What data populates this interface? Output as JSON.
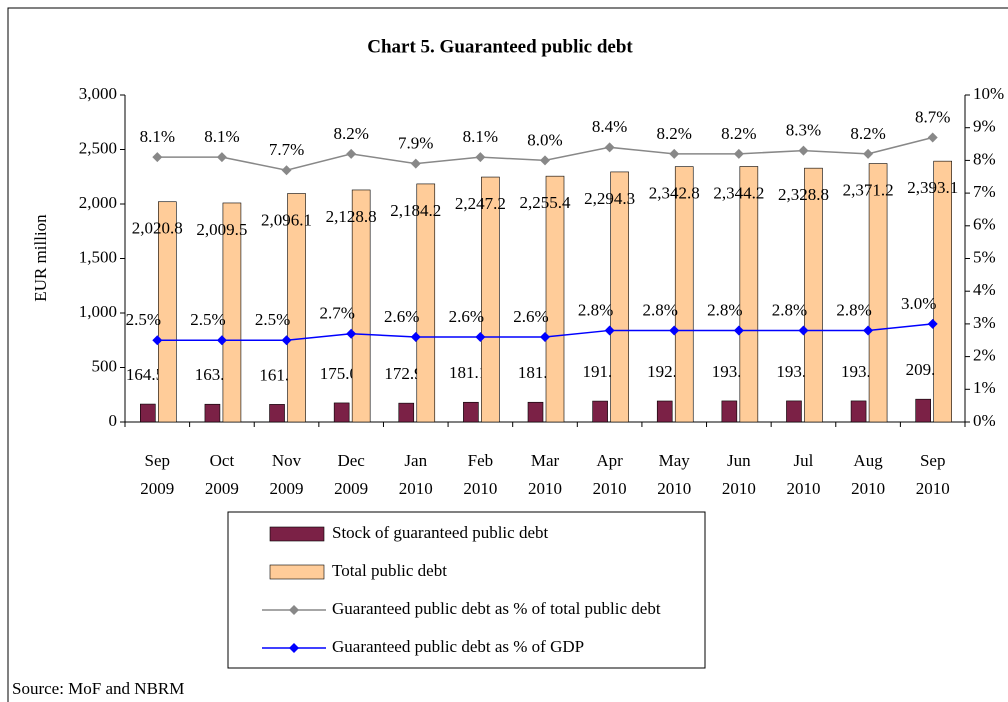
{
  "chart_data": {
    "type": "bar",
    "title": "Chart 5. Guaranteed public debt",
    "y_label": "EUR million",
    "source": "Source: MoF and NBRM",
    "categories": [
      "Sep 2009",
      "Oct 2009",
      "Nov 2009",
      "Dec 2009",
      "Jan 2010",
      "Feb 2010",
      "Mar 2010",
      "Apr 2010",
      "May 2010",
      "Jun 2010",
      "Jul 2010",
      "Aug 2010",
      "Sep 2010"
    ],
    "ylim": [
      0,
      3000
    ],
    "yticks": [
      0,
      500,
      {
        "value": 1000,
        "label": "1,000"
      },
      {
        "value": 1500,
        "label": "1,500"
      },
      {
        "value": 2000,
        "label": "2,000"
      },
      {
        "value": 2500,
        "label": "2,500"
      },
      {
        "value": 3000,
        "label": "3,000"
      }
    ],
    "y2lim": [
      0,
      10
    ],
    "y2ticks": [
      {
        "value": 0,
        "label": "0%"
      },
      {
        "value": 1,
        "label": "1%"
      },
      {
        "value": 2,
        "label": "2%"
      },
      {
        "value": 3,
        "label": "3%"
      },
      {
        "value": 4,
        "label": "4%"
      },
      {
        "value": 5,
        "label": "5%"
      },
      {
        "value": 6,
        "label": "6%"
      },
      {
        "value": 7,
        "label": "7%"
      },
      {
        "value": 8,
        "label": "8%"
      },
      {
        "value": 9,
        "label": "9%"
      },
      {
        "value": 10,
        "label": "10%"
      }
    ],
    "grid": false,
    "series": [
      {
        "name": "Stock of guaranteed public debt",
        "type": "bar",
        "color": "#7b2146",
        "values": [
          164.51,
          163.1,
          161.7,
          175.02,
          172.98,
          181.18,
          181.3,
          191.9,
          192.7,
          193.4,
          193.5,
          193.4,
          209.3
        ]
      },
      {
        "name": "Total public debt",
        "type": "bar",
        "color": "#ffcc99",
        "values": [
          2020.8,
          2009.5,
          2096.1,
          2128.8,
          2184.2,
          2247.2,
          2255.4,
          2294.3,
          2342.8,
          2344.2,
          2328.8,
          2371.2,
          2393.1
        ],
        "value_labels": [
          "2,020.8",
          "2,009.5",
          "2,096.1",
          "2,128.8",
          "2,184.2",
          "2,247.2",
          "2,255.4",
          "2,294.3",
          "2,342.8",
          "2,344.2",
          "2,328.8",
          "2,371.2",
          "2,393.1"
        ]
      },
      {
        "name": "Guaranteed public debt as % of total public debt",
        "type": "line",
        "axis": "y2",
        "color": "#888888",
        "values": [
          8.1,
          8.1,
          7.7,
          8.2,
          7.9,
          8.1,
          8.0,
          8.4,
          8.2,
          8.2,
          8.3,
          8.2,
          8.7
        ],
        "value_labels": [
          "8.1%",
          "8.1%",
          "7.7%",
          "8.2%",
          "7.9%",
          "8.1%",
          "8.0%",
          "8.4%",
          "8.2%",
          "8.2%",
          "8.3%",
          "8.2%",
          "8.7%"
        ]
      },
      {
        "name": "Guaranteed public debt as % of GDP",
        "type": "line",
        "axis": "y2",
        "color": "#0000ff",
        "values": [
          2.5,
          2.5,
          2.5,
          2.7,
          2.6,
          2.6,
          2.6,
          2.8,
          2.8,
          2.8,
          2.8,
          2.8,
          3.0
        ],
        "value_labels": [
          "2.5%",
          "2.5%",
          "2.5%",
          "2.7%",
          "2.6%",
          "2.6%",
          "2.6%",
          "2.8%",
          "2.8%",
          "2.8%",
          "2.8%",
          "2.8%",
          "3.0%"
        ]
      }
    ]
  }
}
